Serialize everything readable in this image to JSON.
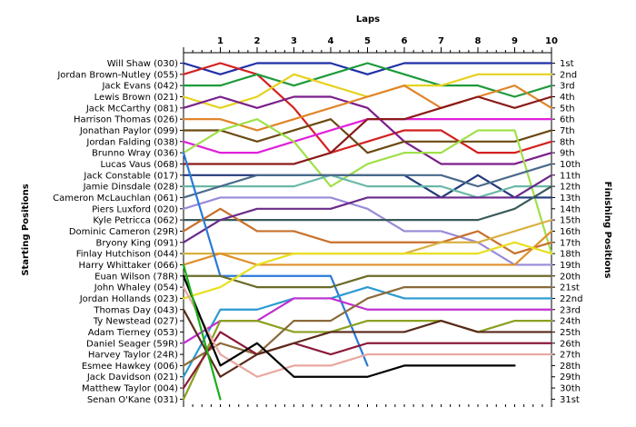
{
  "chart_data": {
    "type": "line",
    "x_title": "Laps",
    "y_left_title": "Starting Positions",
    "y_right_title": "Finishing Positions",
    "laps": [
      "1",
      "2",
      "3",
      "4",
      "5",
      "6",
      "7",
      "8",
      "9",
      "10"
    ],
    "x_range": [
      0,
      10
    ],
    "y_range": [
      1,
      31
    ],
    "y_reversed": true,
    "grid": false,
    "starting_labels": [
      "Will Shaw (030)",
      "Jordan Brown-Nutley (055)",
      "Jack Evans (042)",
      "Lewis Brown (021)",
      "Jack McCarthy (081)",
      "Harrison Thomas (026)",
      "Jonathan Paylor (099)",
      "Jordan Falding (038)",
      "Brunno Wray (036)",
      "Lucas Vaus (068)",
      "Jack Constable (017)",
      "Jamie Dinsdale (028)",
      "Cameron McLauchlan (061)",
      "Piers Luxford (020)",
      "Kyle Petricca (062)",
      "Dominic Cameron (29R)",
      "Bryony King (091)",
      "Finlay Hutchison (044)",
      "Harry Whittaker (066)",
      "Euan Wilson (78R)",
      "John Whaley (054)",
      "Jordan Hollands (023)",
      "Thomas Day (043)",
      "Ty Newstead (027)",
      "Adam Tierney (053)",
      "Daniel Seager (59R)",
      "Harvey Taylor (24R)",
      "Esmee Hawkey (006)",
      "Jack Davidson (021)",
      "Matthew Taylor (004)",
      "Senan O'Kane (031)"
    ],
    "finishing_labels": [
      "1st",
      "2nd",
      "3rd",
      "4th",
      "5th",
      "6th",
      "7th",
      "8th",
      "9th",
      "10th",
      "11th",
      "12th",
      "13th",
      "14th",
      "15th",
      "16th",
      "17th",
      "18th",
      "19th",
      "20th",
      "21st",
      "22nd",
      "23rd",
      "24th",
      "25th",
      "26th",
      "27th",
      "28th",
      "29th",
      "30th",
      "31st"
    ],
    "series": [
      {
        "color": "#1f2fa8",
        "positions": [
          1,
          2,
          1,
          1,
          1,
          2,
          1,
          1,
          1,
          1,
          1
        ]
      },
      {
        "color": "#d42020",
        "positions": [
          2,
          1,
          2,
          5,
          9,
          8,
          7,
          7,
          9,
          9,
          8
        ]
      },
      {
        "color": "#1e9a3a",
        "positions": [
          3,
          3,
          2,
          3,
          2,
          1,
          2,
          3,
          3,
          4,
          3
        ]
      },
      {
        "color": "#e6d21e",
        "positions": [
          4,
          5,
          4,
          2,
          3,
          4,
          3,
          3,
          2,
          2,
          2
        ]
      },
      {
        "color": "#7a1e8a",
        "positions": [
          5,
          4,
          5,
          4,
          4,
          5,
          8,
          10,
          10,
          10,
          9
        ]
      },
      {
        "color": "#e0852a",
        "positions": [
          6,
          6,
          7,
          6,
          5,
          4,
          3,
          5,
          4,
          3,
          5
        ]
      },
      {
        "color": "#6b4a12",
        "positions": [
          7,
          7,
          8,
          7,
          6,
          9,
          8,
          8,
          8,
          8,
          7
        ]
      },
      {
        "color": "#e020d8",
        "positions": [
          8,
          9,
          9,
          8,
          7,
          6,
          6,
          6,
          6,
          6,
          6
        ]
      },
      {
        "color": "#a0e04a",
        "positions": [
          9,
          7,
          6,
          8,
          12,
          10,
          9,
          9,
          7,
          7,
          18
        ]
      },
      {
        "color": "#8a1a1a",
        "positions": [
          10,
          10,
          10,
          10,
          9,
          6,
          6,
          5,
          4,
          5,
          4
        ]
      },
      {
        "color": "#223a7a",
        "positions": [
          11,
          11,
          11,
          11,
          11,
          11,
          11,
          13,
          11,
          13,
          13
        ]
      },
      {
        "color": "#6ab8a8",
        "positions": [
          12,
          12,
          12,
          12,
          11,
          12,
          12,
          12,
          13,
          12,
          12
        ]
      },
      {
        "color": "#4a6a8a",
        "positions": [
          13,
          12,
          11,
          11,
          11,
          11,
          11,
          11,
          12,
          11,
          10
        ]
      },
      {
        "color": "#9a8ad8",
        "positions": [
          14,
          13,
          13,
          13,
          13,
          14,
          16,
          16,
          17,
          19,
          19
        ]
      },
      {
        "color": "#3a5a5a",
        "positions": [
          15,
          15,
          15,
          15,
          15,
          15,
          15,
          15,
          15,
          14,
          12
        ]
      },
      {
        "color": "#c8702a",
        "positions": [
          16,
          14,
          16,
          16,
          17,
          17,
          17,
          17,
          16,
          18,
          17
        ]
      },
      {
        "color": "#6a2a8a",
        "positions": [
          17,
          15,
          14,
          14,
          14,
          13,
          13,
          13,
          13,
          13,
          11
        ]
      },
      {
        "color": "#d8b040",
        "positions": [
          18,
          18,
          18,
          18,
          18,
          18,
          18,
          17,
          17,
          16,
          15
        ]
      },
      {
        "color": "#e0902a",
        "positions": [
          19,
          18,
          19,
          19,
          19,
          19,
          19,
          19,
          19,
          19,
          16
        ]
      },
      {
        "color": "#2a7ad8",
        "positions": [
          9,
          20,
          20,
          20,
          20,
          28
        ]
      },
      {
        "color": "#6b6b2a",
        "positions": [
          20,
          20,
          21,
          21,
          21,
          20,
          20,
          20,
          20,
          20,
          20
        ]
      },
      {
        "color": "#e8e020",
        "positions": [
          22,
          21,
          19,
          18,
          18,
          18,
          18,
          18,
          18,
          17,
          18
        ]
      },
      {
        "color": "#2a9ad0",
        "positions": [
          29,
          23,
          23,
          22,
          22,
          21,
          22,
          22,
          22,
          22,
          22
        ]
      },
      {
        "color": "#c030d0",
        "positions": [
          26,
          24,
          24,
          22,
          22,
          23,
          23,
          23,
          23,
          23,
          23
        ]
      },
      {
        "color": "#8aa020",
        "positions": [
          31,
          24,
          24,
          25,
          25,
          24,
          24,
          24,
          25,
          24,
          24
        ]
      },
      {
        "color": "#8a6a3a",
        "positions": [
          28,
          26,
          27,
          24,
          24,
          22,
          21,
          21,
          21,
          21,
          21
        ]
      },
      {
        "color": "#8a1a3a",
        "positions": [
          30,
          25,
          27,
          26,
          27,
          26,
          26,
          26,
          26,
          26,
          26
        ]
      },
      {
        "color": "#5a2a1a",
        "positions": [
          23,
          29,
          27,
          26,
          25,
          25,
          25,
          24,
          25,
          25,
          25
        ]
      },
      {
        "color": "#e8a8a0",
        "positions": [
          21,
          27,
          29,
          28,
          28,
          27,
          27,
          27,
          27,
          27,
          27
        ]
      },
      {
        "color": "#000000",
        "positions": [
          20,
          28,
          26,
          29,
          29,
          29,
          28,
          28,
          28,
          28
        ]
      },
      {
        "color": "#18b018",
        "positions": [
          19,
          31
        ]
      }
    ]
  }
}
